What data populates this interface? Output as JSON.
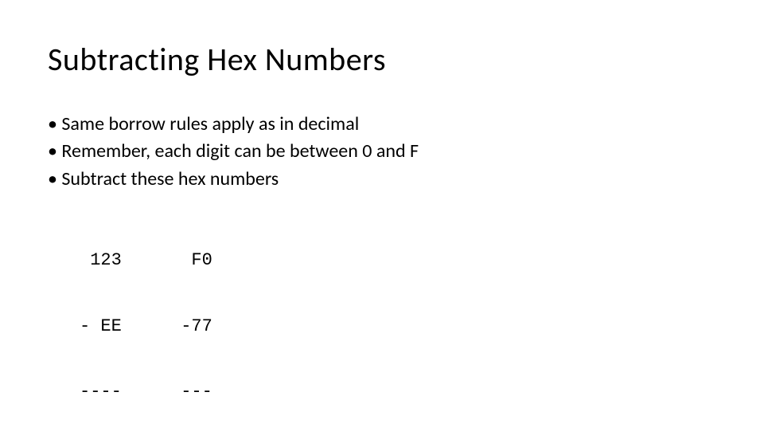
{
  "slide": {
    "title": "Subtracting Hex Numbers",
    "bullets": [
      "Same borrow rules apply as in decimal",
      "Remember, each digit can be between 0 and F",
      "Subtract these hex numbers"
    ],
    "examples": [
      {
        "line1": " 123",
        "line2": "- EE",
        "line3": "----"
      },
      {
        "line1": " F0",
        "line2": "-77",
        "line3": "---"
      }
    ],
    "style": {
      "background_color": "#ffffff",
      "text_color": "#000000",
      "title_fontsize": 40,
      "title_fontweight": 300,
      "body_fontsize": 24,
      "mono_fontsize": 22,
      "font_family": "Calibri",
      "mono_font_family": "Courier New"
    }
  }
}
